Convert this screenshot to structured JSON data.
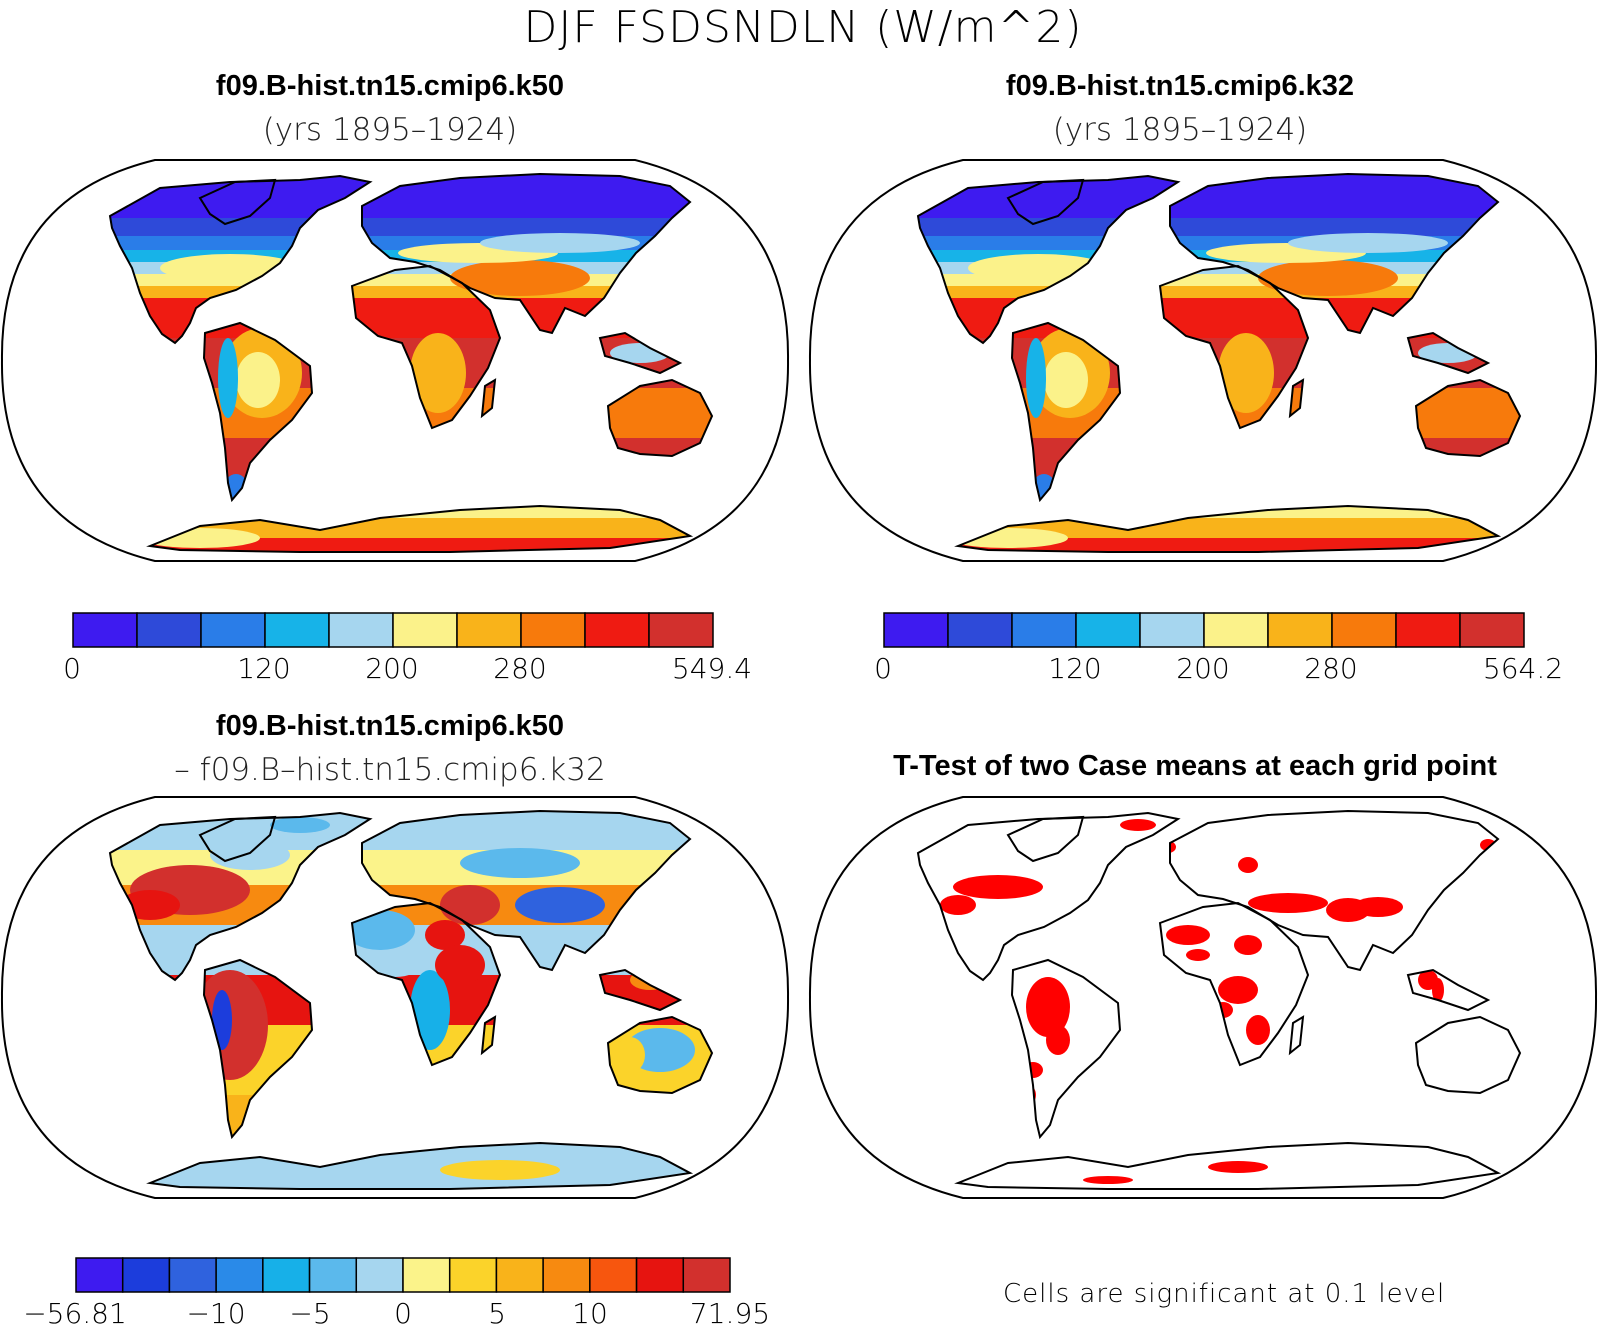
{
  "title": "DJF FSDSNDLN (W/m^2)",
  "colors": {
    "abs": [
      "#3e1bf0",
      "#2e4ad9",
      "#2a7de8",
      "#17b3e8",
      "#a6d6ef",
      "#fbf28a",
      "#f9b31a",
      "#f77a0c",
      "#ef1b12",
      "#d2302d"
    ],
    "diff": [
      "#3e1bf0",
      "#1c3ddc",
      "#2f62de",
      "#2a8ae8",
      "#17b0e8",
      "#5bb9ec",
      "#a6d6ef",
      "#fbf38a",
      "#fbd32a",
      "#f9b31a",
      "#f78a10",
      "#f7560e",
      "#e61410",
      "#d2302d"
    ],
    "sig": "#ff0000"
  },
  "panels": [
    {
      "id": "k50",
      "title": "f09.B-hist.tn15.cmip6.k50",
      "subtitle": "(yrs 1895–1924)",
      "colorbar_labels": [
        "0",
        "120",
        "200",
        "280",
        "549.4"
      ]
    },
    {
      "id": "k32",
      "title": "f09.B-hist.tn15.cmip6.k32",
      "subtitle": "(yrs 1895–1924)",
      "colorbar_labels": [
        "0",
        "120",
        "200",
        "280",
        "564.2"
      ]
    },
    {
      "id": "diff",
      "title": "f09.B-hist.tn15.cmip6.k50",
      "subtitle": "– f09.B–hist.tn15.cmip6.k32",
      "colorbar_labels": [
        "−56.81",
        "−10",
        "−5",
        "0",
        "5",
        "10",
        "71.95"
      ]
    },
    {
      "id": "ttest",
      "title": "T-Test of two Case means at each grid point",
      "note": "Cells are significant at 0.1 level"
    }
  ]
}
